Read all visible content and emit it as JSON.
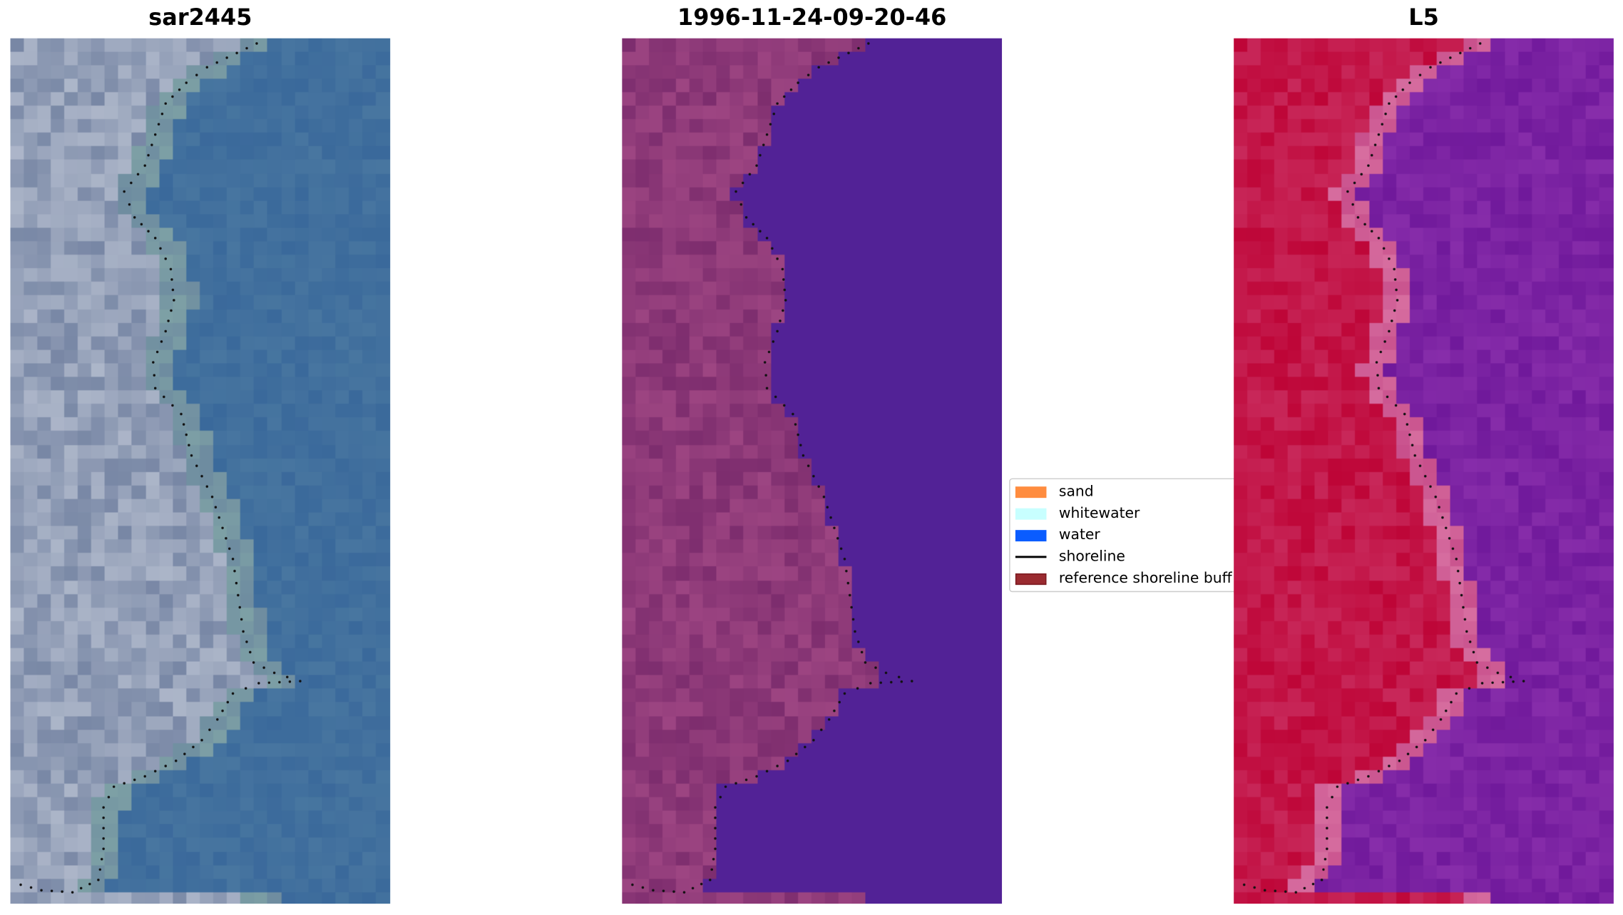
{
  "panels": [
    {
      "title": "sar2445",
      "kind": "rgb"
    },
    {
      "title": "1996-11-24-09-20-46",
      "kind": "classified"
    },
    {
      "title": "L5",
      "kind": "index"
    }
  ],
  "legend": {
    "items": [
      {
        "label": "sand",
        "color": "#ff8c3f",
        "type": "patch"
      },
      {
        "label": "whitewater",
        "color": "#c8ffff",
        "type": "patch"
      },
      {
        "label": "water",
        "color": "#0a5cff",
        "type": "patch"
      },
      {
        "label": "shoreline",
        "color": "#000000",
        "type": "line"
      },
      {
        "label": "reference shoreline buff",
        "color": "#9a2b30",
        "type": "patch"
      }
    ]
  }
}
